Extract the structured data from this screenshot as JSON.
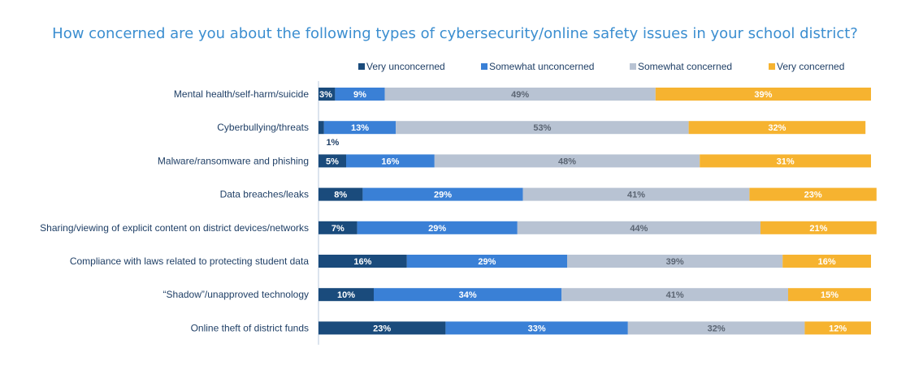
{
  "chart_data": {
    "type": "bar",
    "orientation": "horizontal",
    "stacked": true,
    "title": "How concerned are you about the following types of cybersecurity/online safety issues in your school district?",
    "xlabel": "",
    "ylabel": "",
    "xlim": [
      0,
      100
    ],
    "grid": false,
    "legend_position": "top",
    "categories": [
      "Mental health/self-harm/suicide",
      "Cyberbullying/threats",
      "Malware/ransomware and phishing",
      "Data breaches/leaks",
      "Sharing/viewing of explicit content on district devices/networks",
      "Compliance with laws related to protecting student data",
      "“Shadow”/unapproved technology",
      "Online theft of district funds"
    ],
    "series": [
      {
        "name": "Very unconcerned",
        "color": "#1a4b7c",
        "label_color": "#ffffff",
        "values": [
          3,
          1,
          5,
          8,
          7,
          16,
          10,
          23
        ],
        "labels": [
          "3%",
          "1%",
          "5%",
          "8%",
          "7%",
          "16%",
          "10%",
          "23%"
        ]
      },
      {
        "name": "Somewhat unconcerned",
        "color": "#3a80d6",
        "label_color": "#ffffff",
        "values": [
          9,
          13,
          16,
          29,
          29,
          29,
          34,
          33
        ],
        "labels": [
          "9%",
          "13%",
          "16%",
          "29%",
          "29%",
          "29%",
          "34%",
          "33%"
        ]
      },
      {
        "name": "Somewhat concerned",
        "color": "#b8c3d3",
        "label_color": "#5b6573",
        "values": [
          49,
          53,
          48,
          41,
          44,
          39,
          41,
          32
        ],
        "labels": [
          "49%",
          "53%",
          "48%",
          "41%",
          "44%",
          "39%",
          "41%",
          "32%"
        ]
      },
      {
        "name": "Very concerned",
        "color": "#f6b330",
        "label_color": "#ffffff",
        "values": [
          39,
          32,
          31,
          23,
          21,
          16,
          15,
          12
        ],
        "labels": [
          "39%",
          "32%",
          "31%",
          "23%",
          "21%",
          "16%",
          "15%",
          "12%"
        ]
      }
    ]
  }
}
